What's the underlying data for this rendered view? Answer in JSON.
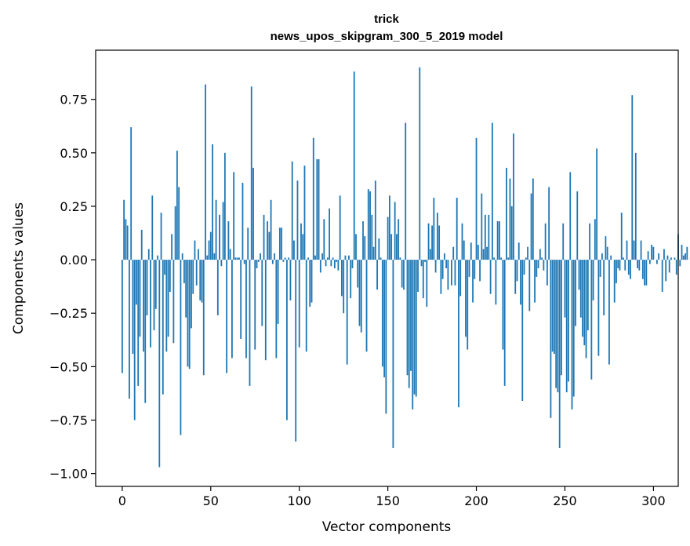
{
  "chart_data": {
    "type": "bar",
    "title": "trick",
    "subtitle": "news_upos_skipgram_300_5_2019 model",
    "xlabel": "Vector components",
    "ylabel": "Components values",
    "xlim": [
      -15,
      314
    ],
    "ylim": [
      -1.06,
      0.98
    ],
    "x_ticks": [
      0,
      50,
      100,
      150,
      200,
      250,
      300
    ],
    "x_tick_labels": [
      "0",
      "50",
      "100",
      "150",
      "200",
      "250",
      "300"
    ],
    "y_ticks": [
      0.75,
      0.5,
      0.25,
      0.0,
      -0.25,
      -0.5,
      -0.75,
      -1.0
    ],
    "y_tick_labels": [
      "0.75",
      "0.50",
      "0.25",
      "0.00",
      "−0.25",
      "−0.50",
      "−0.75",
      "−1.00"
    ],
    "bar_color": "#1f77b4",
    "values": [
      -0.53,
      0.28,
      0.19,
      0.16,
      -0.65,
      0.62,
      -0.44,
      -0.75,
      -0.21,
      -0.59,
      -0.36,
      0.14,
      -0.43,
      -0.67,
      -0.26,
      0.05,
      -0.41,
      0.3,
      -0.33,
      -0.23,
      0.02,
      -0.97,
      0.22,
      -0.63,
      -0.07,
      -0.43,
      -0.36,
      -0.15,
      0.12,
      -0.39,
      0.25,
      0.51,
      0.34,
      -0.82,
      0.03,
      -0.11,
      -0.27,
      -0.5,
      -0.51,
      -0.32,
      -0.16,
      0.09,
      -0.12,
      0.05,
      -0.19,
      -0.2,
      -0.54,
      0.82,
      0.02,
      0.09,
      0.13,
      0.54,
      0.03,
      0.28,
      -0.26,
      0.21,
      -0.03,
      0.27,
      0.5,
      -0.53,
      0.18,
      0.05,
      -0.46,
      0.41,
      0.01,
      0.01,
      0.01,
      -0.37,
      0.36,
      -0.02,
      -0.46,
      0.15,
      -0.59,
      0.81,
      0.43,
      -0.42,
      -0.04,
      -0.01,
      0.03,
      -0.31,
      0.21,
      -0.47,
      0.18,
      0.13,
      0.28,
      -0.02,
      0.03,
      -0.46,
      -0.3,
      0.15,
      0.15,
      -0.01,
      0.01,
      -0.75,
      0.01,
      -0.19,
      0.46,
      0.09,
      -0.85,
      0.37,
      -0.41,
      0.17,
      0.12,
      0.44,
      -0.43,
      0.01,
      -0.22,
      -0.2,
      0.57,
      0.02,
      0.47,
      0.47,
      -0.06,
      0.03,
      0.19,
      -0.03,
      0.01,
      0.24,
      -0.03,
      0.01,
      -0.04,
      -0.01,
      -0.05,
      0.3,
      -0.17,
      -0.25,
      0.02,
      -0.49,
      0.02,
      -0.18,
      -0.04,
      0.88,
      0.12,
      -0.13,
      -0.31,
      -0.34,
      0.18,
      0.11,
      -0.43,
      0.33,
      0.32,
      0.21,
      0.06,
      0.37,
      -0.14,
      0.1,
      0.01,
      -0.5,
      -0.55,
      -0.72,
      0.2,
      0.3,
      0.12,
      -0.88,
      0.27,
      0.12,
      0.19,
      0.01,
      -0.13,
      -0.14,
      0.64,
      -0.54,
      -0.6,
      -0.52,
      -0.7,
      -0.63,
      -0.64,
      -0.15,
      0.9,
      -0.03,
      -0.18,
      -0.01,
      -0.22,
      0.17,
      0.05,
      0.16,
      0.29,
      -0.06,
      0.22,
      0.16,
      -0.16,
      -0.09,
      0.03,
      -0.04,
      -0.14,
      0.0,
      -0.12,
      0.06,
      -0.12,
      0.29,
      -0.69,
      -0.17,
      0.17,
      0.09,
      -0.36,
      -0.42,
      -0.08,
      0.08,
      -0.2,
      -0.09,
      0.57,
      0.07,
      -0.1,
      0.31,
      0.05,
      0.21,
      0.06,
      0.21,
      -0.16,
      0.64,
      0.01,
      -0.21,
      0.18,
      0.18,
      0.01,
      -0.42,
      -0.59,
      0.43,
      0.01,
      0.38,
      0.25,
      0.59,
      -0.16,
      -0.1,
      0.08,
      -0.21,
      -0.66,
      -0.07,
      0.01,
      0.06,
      -0.24,
      0.31,
      0.38,
      -0.2,
      -0.08,
      -0.04,
      0.05,
      0.01,
      -0.05,
      0.17,
      -0.12,
      0.34,
      -0.74,
      -0.43,
      -0.44,
      -0.6,
      -0.62,
      -0.88,
      -0.54,
      0.17,
      -0.27,
      -0.62,
      -0.57,
      0.41,
      -0.7,
      -0.64,
      -0.31,
      0.32,
      -0.14,
      -0.27,
      -0.36,
      -0.4,
      -0.46,
      -0.33,
      0.17,
      -0.56,
      -0.19,
      0.19,
      0.52,
      -0.45,
      -0.08,
      0.03,
      -0.26,
      0.11,
      0.06,
      -0.49,
      0.02,
      0.0,
      -0.2,
      -0.11,
      -0.04,
      -0.05,
      0.22,
      0.01,
      -0.05,
      0.09,
      -0.07,
      -0.09,
      0.77,
      0.09,
      0.5,
      -0.04,
      -0.05,
      0.09,
      -0.09,
      -0.12,
      -0.12,
      0.04,
      -0.02,
      0.07,
      0.06,
      0.0,
      -0.02,
      0.03,
      0.0,
      -0.15,
      0.05,
      -0.1,
      0.02,
      -0.06,
      0.01,
      0.0,
      0.01,
      -0.07,
      0.12,
      -0.03,
      0.07,
      0.02,
      0.03,
      0.06,
      0.0,
      0.01,
      0.0,
      -0.01,
      0.0,
      0.01,
      0.0
    ]
  }
}
